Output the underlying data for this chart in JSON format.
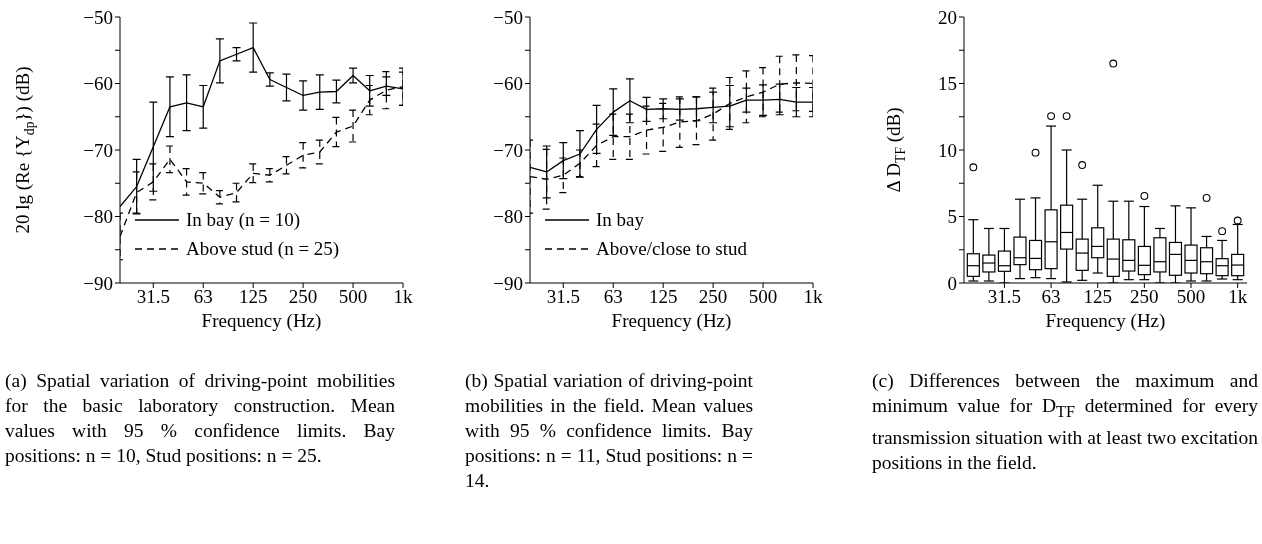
{
  "chart_data": [
    {
      "type": "line",
      "categories": [
        null,
        null,
        "31.5",
        null,
        null,
        "63",
        null,
        null,
        "125",
        null,
        null,
        "250",
        null,
        null,
        "500",
        null,
        null,
        "1k"
      ],
      "xlabel": "Frequency (Hz)",
      "ylabel": "20 lg (Re {Y$_{dp}$}) (dB)",
      "ylim": [
        -90,
        -50
      ],
      "yticks": [
        -90,
        {
          "value": -85,
          "label": null
        },
        -80,
        {
          "value": -75,
          "label": null
        },
        -70,
        {
          "value": -65,
          "label": null
        },
        -60,
        {
          "value": -55,
          "label": null
        },
        -50
      ],
      "grid": false,
      "legend": "bottom left",
      "marker": "none",
      "series": [
        {
          "name": "In bay (n = 10)",
          "color": "#000000",
          "line_style": "solid",
          "values": [
            -78.5,
            -75.5,
            -69.5,
            -63.5,
            -62.9,
            -63.5,
            -56.6,
            -55.6,
            -54.6,
            -59.4,
            -60.6,
            -61.8,
            -61.3,
            -61.2,
            -58.8,
            -61.1,
            -60.4,
            -60.8
          ],
          "errors": [
            null,
            4.1,
            6.7,
            4.5,
            4.2,
            3.2,
            3.3,
            1,
            3.7,
            1,
            2,
            2.2,
            2.6,
            1.7,
            1.1,
            2.3,
            1.4,
            2.5
          ]
        },
        {
          "name": "Above stud (n = 25)",
          "color": "#000000",
          "line_style": "dashed",
          "values": [
            -83,
            -76.4,
            -74.8,
            -71.4,
            -74.8,
            -75,
            -77.1,
            -76.4,
            -73.5,
            -73.8,
            -72.3,
            -70.8,
            -70.3,
            -67.3,
            -66.4,
            -62.5,
            -61,
            -60.5
          ],
          "errors": [
            3.5,
            3.1,
            2.7,
            2,
            2,
            1.6,
            1,
            1.4,
            1.4,
            1,
            1.3,
            1.9,
            1.8,
            2.2,
            2.4,
            2.2,
            2.8,
            2.8
          ]
        }
      ],
      "annotations": [
        "(a) Spatial variation of driving-point mobilities for the basic laboratory construction. Mean values with 95 % confidence limits. Bay positions: n = 10, Stud positions: n = 25."
      ]
    },
    {
      "type": "line",
      "categories": [
        null,
        null,
        "31.5",
        null,
        null,
        "63",
        null,
        null,
        "125",
        null,
        null,
        "250",
        null,
        null,
        "500",
        null,
        null,
        "1k"
      ],
      "xlabel": "Frequency (Hz)",
      "ylim": [
        -90,
        -50
      ],
      "yticks": [
        -90,
        {
          "value": -85,
          "label": null
        },
        -80,
        {
          "value": -75,
          "label": null
        },
        -70,
        {
          "value": -65,
          "label": null
        },
        -60,
        {
          "value": -55,
          "label": null
        },
        -50
      ],
      "grid": false,
      "legend": "bottom left",
      "marker": "none",
      "series": [
        {
          "name": "In bay",
          "color": "#000000",
          "line_style": "solid",
          "values": [
            -72.6,
            -73.3,
            -71.6,
            -70.6,
            -66.9,
            -64.3,
            -62.6,
            -63.9,
            -63.8,
            -63.9,
            -63.8,
            -63.6,
            -63.4,
            -62.5,
            -62.5,
            -62.4,
            -62.8,
            -62.8
          ],
          "errors": [
            null,
            3.9,
            2.7,
            3.5,
            3.6,
            3.5,
            3.3,
            1.8,
            1.5,
            1.6,
            1.8,
            2.3,
            3.1,
            1.8,
            2.3,
            2.3,
            2.2,
            2.2
          ]
        },
        {
          "name": "Above/close to stud",
          "color": "#000000",
          "line_style": "dashed",
          "values": [
            -74,
            -74.4,
            -73.8,
            -72,
            -69.3,
            -68,
            -68,
            -67,
            -66.6,
            -65.8,
            -65.6,
            -64.6,
            -63,
            -62,
            -61.3,
            -60.1,
            -59.9,
            -60
          ],
          "errors": [
            5.5,
            4.5,
            2.6,
            2,
            3.2,
            3.4,
            3.4,
            3.6,
            3.6,
            3.8,
            3.6,
            3.9,
            3.9,
            3.9,
            3.7,
            4.2,
            4.2,
            4.2
          ]
        }
      ],
      "annotations": [
        "(b) Spatial variation of driving-point mobilities in the field. Mean values with 95 % confidence limits. Bay positions: n = 11, Stud positions: n = 14."
      ]
    },
    {
      "type": "box",
      "categories": [
        null,
        null,
        "31.5",
        null,
        null,
        "63",
        null,
        null,
        "125",
        null,
        null,
        "250",
        null,
        null,
        "500",
        null,
        null,
        "1k"
      ],
      "xlabel": "Frequency (Hz)",
      "ylabel": "Δ D$_{TF}$ (dB)",
      "ylim": [
        0,
        20
      ],
      "yticks": [
        0,
        {
          "value": 2.5,
          "label": null
        },
        5,
        {
          "value": 7.5,
          "label": null
        },
        10,
        {
          "value": 12.5,
          "label": null
        },
        15,
        {
          "value": 17.5,
          "label": null
        },
        20
      ],
      "grid": false,
      "boxes": [
        {
          "low": 0.15,
          "q1": 0.5,
          "median": 1.3,
          "q3": 2.2,
          "high": 4.76,
          "outliers": [
            8.7
          ]
        },
        {
          "low": 0.15,
          "q1": 0.83,
          "median": 1.5,
          "q3": 2.1,
          "high": 4.1
        },
        {
          "low": 0,
          "q1": 0.88,
          "median": 1.3,
          "q3": 2.4,
          "high": 4.1
        },
        {
          "low": 0.33,
          "q1": 1.38,
          "median": 1.9,
          "q3": 3.45,
          "high": 6.3
        },
        {
          "low": 0.4,
          "q1": 1,
          "median": 1.85,
          "q3": 3.2,
          "high": 6.4,
          "outliers": [
            9.8
          ]
        },
        {
          "low": 0.33,
          "q1": 1.08,
          "median": 3.1,
          "q3": 5.5,
          "high": 11.8,
          "outliers": [
            12.55
          ]
        },
        {
          "low": 0.08,
          "q1": 2.55,
          "median": 3.8,
          "q3": 5.85,
          "high": 10,
          "outliers": [
            12.55
          ]
        },
        {
          "low": 0.2,
          "q1": 0.95,
          "median": 2.25,
          "q3": 3.3,
          "high": 6.3,
          "outliers": [
            8.87
          ]
        },
        {
          "low": 0.75,
          "q1": 1.9,
          "median": 2.75,
          "q3": 4.15,
          "high": 7.35
        },
        {
          "low": 0,
          "q1": 0.5,
          "median": 1.8,
          "q3": 3.3,
          "high": 6.15,
          "outliers": [
            16.5
          ]
        },
        {
          "low": 0.25,
          "q1": 0.9,
          "median": 1.7,
          "q3": 3.25,
          "high": 6.15
        },
        {
          "low": 0.25,
          "q1": 0.63,
          "median": 1.33,
          "q3": 2.75,
          "high": 5.75,
          "outliers": [
            6.55
          ]
        },
        {
          "low": 0,
          "q1": 0.83,
          "median": 1.6,
          "q3": 3.4,
          "high": 4.1
        },
        {
          "low": 0,
          "q1": 0.58,
          "median": 2.15,
          "q3": 3.05,
          "high": 5.8
        },
        {
          "low": 0.15,
          "q1": 0.75,
          "median": 1.7,
          "q3": 2.85,
          "high": 5.65
        },
        {
          "low": 0.15,
          "q1": 0.7,
          "median": 1.6,
          "q3": 2.65,
          "high": 3.5,
          "outliers": [
            6.4
          ]
        },
        {
          "low": 0.3,
          "q1": 0.55,
          "median": 1.3,
          "q3": 1.83,
          "high": 3.2,
          "outliers": [
            3.9
          ]
        },
        {
          "low": 0.25,
          "q1": 0.55,
          "median": 1.35,
          "q3": 2.15,
          "high": 4.4,
          "outliers": [
            4.7
          ]
        }
      ],
      "annotations": [
        "(c) Differences between the maximum and minimum value for D$_{TF}$ determined for every transmission situation with at least two excitation positions in the field."
      ]
    }
  ]
}
